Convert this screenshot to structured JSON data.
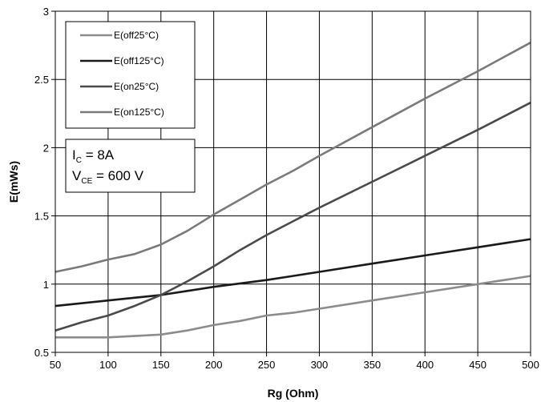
{
  "chart_data": {
    "type": "line",
    "xlabel": "Rg (Ohm)",
    "ylabel": "E(mWs)",
    "xlim": [
      50,
      500
    ],
    "ylim": [
      0.5,
      3
    ],
    "xticks": [
      50,
      100,
      150,
      200,
      250,
      300,
      350,
      400,
      450,
      500
    ],
    "yticks": [
      0.5,
      1,
      1.5,
      2,
      2.5,
      3
    ],
    "xtick_labels": [
      "50",
      "100",
      "150",
      "200",
      "250",
      "300",
      "350",
      "400",
      "450",
      "500"
    ],
    "ytick_labels": [
      "0.5",
      "1",
      "1.5",
      "2",
      "2.5",
      "3"
    ],
    "grid": true,
    "legend_position": "top-left",
    "series": [
      {
        "name": "E(off25°C)",
        "color": "#8c8c8c",
        "x": [
          50,
          75,
          100,
          125,
          150,
          175,
          200,
          225,
          250,
          275,
          300,
          350,
          400,
          450,
          500
        ],
        "y": [
          0.61,
          0.61,
          0.61,
          0.62,
          0.63,
          0.66,
          0.7,
          0.73,
          0.77,
          0.79,
          0.82,
          0.88,
          0.94,
          1.0,
          1.06
        ]
      },
      {
        "name": "E(off125°C)",
        "color": "#1a1a1a",
        "x": [
          50,
          100,
          150,
          175,
          200,
          250,
          275,
          300,
          350,
          400,
          450,
          500
        ],
        "y": [
          0.84,
          0.88,
          0.92,
          0.95,
          0.98,
          1.03,
          1.06,
          1.09,
          1.15,
          1.21,
          1.27,
          1.33
        ]
      },
      {
        "name": "E(on25°C)",
        "color": "#4a4a4a",
        "x": [
          50,
          75,
          100,
          125,
          150,
          175,
          200,
          225,
          250,
          275,
          300,
          350,
          400,
          450,
          500
        ],
        "y": [
          0.66,
          0.72,
          0.77,
          0.84,
          0.92,
          1.02,
          1.13,
          1.25,
          1.36,
          1.46,
          1.56,
          1.75,
          1.94,
          2.13,
          2.33
        ]
      },
      {
        "name": "E(on125°C)",
        "color": "#7a7a7a",
        "x": [
          50,
          75,
          100,
          125,
          150,
          175,
          200,
          225,
          250,
          275,
          300,
          350,
          400,
          450,
          500
        ],
        "y": [
          1.09,
          1.13,
          1.18,
          1.22,
          1.29,
          1.39,
          1.51,
          1.62,
          1.73,
          1.83,
          1.94,
          2.15,
          2.36,
          2.56,
          2.77
        ]
      }
    ],
    "conditions": [
      {
        "symbol": "I",
        "subscript": "C",
        "value": "= 8A"
      },
      {
        "symbol": "V",
        "subscript": "CE",
        "value": "= 600 V"
      }
    ]
  }
}
